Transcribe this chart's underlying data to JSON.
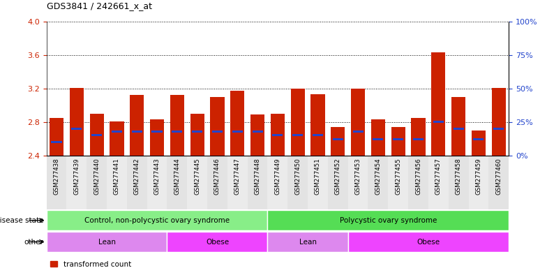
{
  "title": "GDS3841 / 242661_x_at",
  "samples": [
    "GSM277438",
    "GSM277439",
    "GSM277440",
    "GSM277441",
    "GSM277442",
    "GSM277443",
    "GSM277444",
    "GSM277445",
    "GSM277446",
    "GSM277447",
    "GSM277448",
    "GSM277449",
    "GSM277450",
    "GSM277451",
    "GSM277452",
    "GSM277453",
    "GSM277454",
    "GSM277455",
    "GSM277456",
    "GSM277457",
    "GSM277458",
    "GSM277459",
    "GSM277460"
  ],
  "transformed_count": [
    2.85,
    3.21,
    2.9,
    2.81,
    3.12,
    2.83,
    3.12,
    2.9,
    3.1,
    3.17,
    2.89,
    2.9,
    3.2,
    3.13,
    2.74,
    3.2,
    2.83,
    2.74,
    2.85,
    3.63,
    3.1,
    2.7,
    3.21
  ],
  "percentile_rank": [
    10,
    20,
    15,
    18,
    18,
    18,
    18,
    18,
    18,
    18,
    18,
    15,
    15,
    15,
    12,
    18,
    12,
    12,
    12,
    25,
    20,
    12,
    20
  ],
  "bar_color": "#cc2200",
  "blue_color": "#2244cc",
  "ylim_left": [
    2.4,
    4.0
  ],
  "yticks_left": [
    2.4,
    2.8,
    3.2,
    3.6,
    4.0
  ],
  "ylim_right": [
    0,
    100
  ],
  "yticks_right": [
    0,
    25,
    50,
    75,
    100
  ],
  "ylabel_left_color": "#cc2200",
  "ylabel_right_color": "#2244cc",
  "disease_state_groups": [
    {
      "label": "Control, non-polycystic ovary syndrome",
      "start": 0,
      "end": 11,
      "color": "#88ee88"
    },
    {
      "label": "Polycystic ovary syndrome",
      "start": 11,
      "end": 23,
      "color": "#55dd55"
    }
  ],
  "other_groups": [
    {
      "label": "Lean",
      "start": 0,
      "end": 6,
      "color": "#dd88ee"
    },
    {
      "label": "Obese",
      "start": 6,
      "end": 11,
      "color": "#ee44ff"
    },
    {
      "label": "Lean",
      "start": 11,
      "end": 15,
      "color": "#dd88ee"
    },
    {
      "label": "Obese",
      "start": 15,
      "end": 23,
      "color": "#ee44ff"
    }
  ],
  "bar_bottom": 2.4,
  "background_color": "#ffffff"
}
